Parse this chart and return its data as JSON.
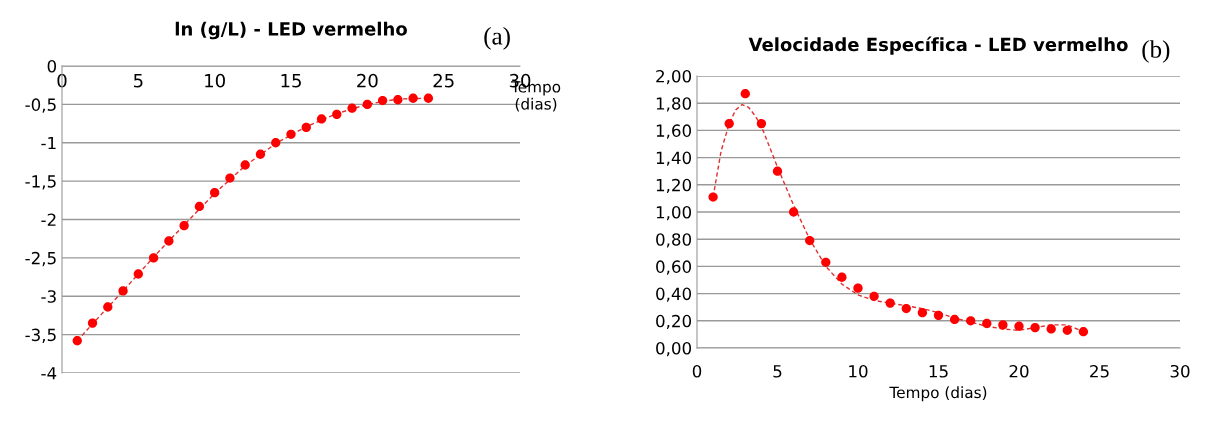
{
  "chart_data": [
    {
      "type": "scatter",
      "title": "ln (g/L) - LED vermelho",
      "xlabel": "Tempo\n(dias)",
      "xlim": [
        0,
        30
      ],
      "xticks": [
        0,
        5,
        10,
        15,
        20,
        25,
        30
      ],
      "ylim": [
        -4,
        0
      ],
      "yticks": [
        0,
        {
          "value": -0.5,
          "label": "-0,5"
        },
        -1,
        {
          "value": -1.5,
          "label": "-1,5"
        },
        -2,
        {
          "value": -2.5,
          "label": "-2,5"
        },
        -3,
        {
          "value": -3.5,
          "label": "-3,5"
        },
        -4
      ],
      "grid": "y",
      "annotations": [
        "(a)"
      ],
      "series": [
        {
          "marker": "circle",
          "color": "#ff0000",
          "x": [
            1,
            2,
            3,
            4,
            5,
            6,
            7,
            8,
            9,
            10,
            11,
            12,
            13,
            14,
            15,
            16,
            17,
            18,
            19,
            20,
            21,
            22,
            23,
            24
          ],
          "values": [
            -3.58,
            -3.35,
            -3.14,
            -2.93,
            -2.71,
            -2.5,
            -2.28,
            -2.08,
            -1.83,
            -1.65,
            -1.46,
            -1.29,
            -1.15,
            -1.0,
            -0.89,
            -0.8,
            -0.69,
            -0.63,
            -0.55,
            -0.5,
            -0.45,
            -0.44,
            -0.42,
            -0.42
          ]
        },
        {
          "type": "line",
          "line_style": "dashed",
          "color": "#e03030",
          "x": [
            1,
            2,
            4,
            6,
            8,
            10,
            12,
            14,
            16,
            18,
            20,
            22,
            24
          ],
          "values": [
            -3.58,
            -3.36,
            -2.93,
            -2.49,
            -2.07,
            -1.66,
            -1.3,
            -1.01,
            -0.79,
            -0.62,
            -0.5,
            -0.43,
            -0.42
          ]
        }
      ]
    },
    {
      "type": "scatter",
      "title": "Velocidade Específica - LED vermelho",
      "xlabel": "Tempo (dias)",
      "xlim": [
        0,
        30
      ],
      "xticks": [
        0,
        5,
        10,
        15,
        20,
        25,
        30
      ],
      "ylim": [
        0,
        2
      ],
      "yticks": [
        {
          "value": 0,
          "label": "0,00"
        },
        {
          "value": 0.2,
          "label": "0,20"
        },
        {
          "value": 0.4,
          "label": "0,40"
        },
        {
          "value": 0.6,
          "label": "0,60"
        },
        {
          "value": 0.8,
          "label": "0,80"
        },
        {
          "value": 1.0,
          "label": "1,00"
        },
        {
          "value": 1.2,
          "label": "1,20"
        },
        {
          "value": 1.4,
          "label": "1,40"
        },
        {
          "value": 1.6,
          "label": "1,60"
        },
        {
          "value": 1.8,
          "label": "1,80"
        },
        {
          "value": 2.0,
          "label": "2,00"
        }
      ],
      "grid": "y",
      "annotations": [
        "(b)"
      ],
      "series": [
        {
          "marker": "circle",
          "color": "#ff0000",
          "x": [
            1,
            2,
            3,
            4,
            5,
            6,
            7,
            8,
            9,
            10,
            11,
            12,
            13,
            14,
            15,
            16,
            17,
            18,
            19,
            20,
            21,
            22,
            23,
            24
          ],
          "values": [
            1.11,
            1.65,
            1.87,
            1.65,
            1.3,
            1.0,
            0.79,
            0.63,
            0.52,
            0.44,
            0.38,
            0.33,
            0.29,
            0.26,
            0.24,
            0.21,
            0.2,
            0.18,
            0.17,
            0.16,
            0.15,
            0.14,
            0.13,
            0.12
          ]
        },
        {
          "type": "line",
          "line_style": "dashed",
          "color": "#e03030",
          "x": [
            1,
            1.5,
            2,
            2.4,
            2.8,
            3.2,
            3.6,
            4,
            5,
            6,
            7,
            8,
            9,
            10,
            11,
            12,
            13,
            14,
            15,
            16,
            17,
            18,
            19,
            20,
            21,
            22,
            23,
            24
          ],
          "values": [
            1.11,
            1.45,
            1.65,
            1.75,
            1.79,
            1.77,
            1.71,
            1.63,
            1.33,
            1.05,
            0.8,
            0.6,
            0.47,
            0.39,
            0.35,
            0.33,
            0.31,
            0.29,
            0.26,
            0.22,
            0.19,
            0.16,
            0.14,
            0.13,
            0.15,
            0.17,
            0.17,
            0.12
          ]
        }
      ]
    }
  ]
}
